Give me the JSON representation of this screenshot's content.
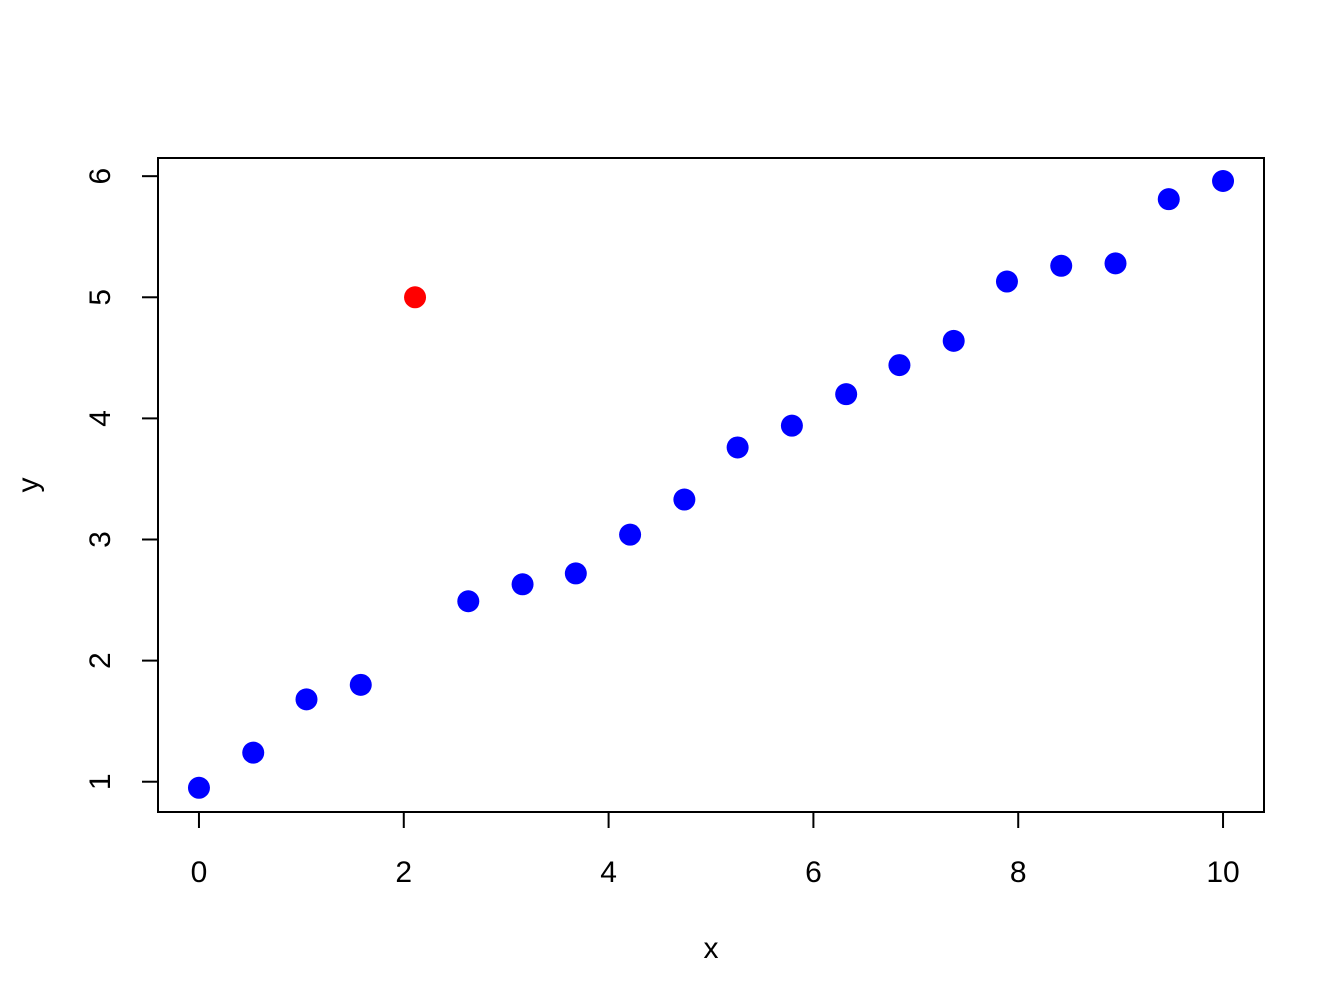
{
  "chart_data": {
    "type": "scatter",
    "title": "",
    "xlabel": "x",
    "ylabel": "y",
    "xlim": [
      -0.4,
      10.4
    ],
    "ylim": [
      0.75,
      6.15
    ],
    "x_ticks": [
      0,
      2,
      4,
      6,
      8,
      10
    ],
    "y_ticks": [
      1,
      2,
      3,
      4,
      5,
      6
    ],
    "grid": false,
    "legend": "none",
    "series": [
      {
        "color": "#0000ff",
        "points": [
          {
            "x": 0.0,
            "y": 0.95
          },
          {
            "x": 0.53,
            "y": 1.24
          },
          {
            "x": 1.05,
            "y": 1.68
          },
          {
            "x": 1.58,
            "y": 1.8
          },
          {
            "x": 2.63,
            "y": 2.49
          },
          {
            "x": 3.16,
            "y": 2.63
          },
          {
            "x": 3.68,
            "y": 2.72
          },
          {
            "x": 4.21,
            "y": 3.04
          },
          {
            "x": 4.74,
            "y": 3.33
          },
          {
            "x": 5.26,
            "y": 3.76
          },
          {
            "x": 5.79,
            "y": 3.94
          },
          {
            "x": 6.32,
            "y": 4.2
          },
          {
            "x": 6.84,
            "y": 4.44
          },
          {
            "x": 7.37,
            "y": 4.64
          },
          {
            "x": 7.89,
            "y": 5.13
          },
          {
            "x": 8.42,
            "y": 5.26
          },
          {
            "x": 8.95,
            "y": 5.28
          },
          {
            "x": 9.47,
            "y": 5.81
          },
          {
            "x": 10.0,
            "y": 5.96
          }
        ]
      },
      {
        "color": "#ff0000",
        "points": [
          {
            "x": 2.11,
            "y": 5.0
          }
        ]
      }
    ]
  }
}
